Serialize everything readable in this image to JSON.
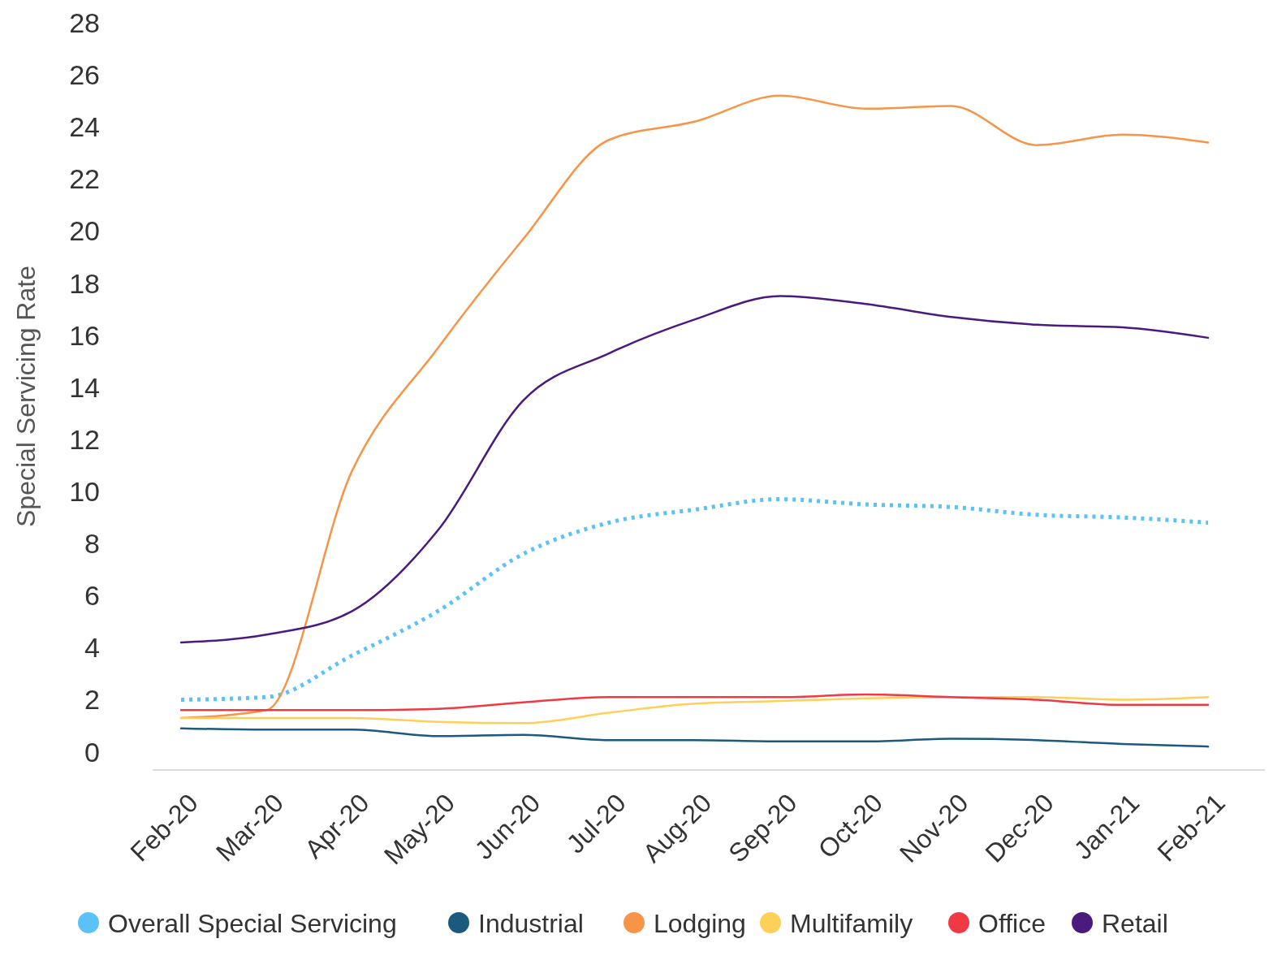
{
  "chart_data": {
    "type": "line",
    "ylabel": "Special Servicing Rate",
    "categories": [
      "Feb-20",
      "Mar-20",
      "Apr-20",
      "May-20",
      "Jun-20",
      "Jul-20",
      "Aug-20",
      "Sep-20",
      "Oct-20",
      "Nov-20",
      "Dec-20",
      "Jan-21",
      "Feb-21"
    ],
    "ylim": [
      -0.7,
      28
    ],
    "yticks": [
      0,
      2,
      4,
      6,
      8,
      10,
      12,
      14,
      16,
      18,
      20,
      22,
      24,
      26,
      28
    ],
    "grid": false,
    "legend": "bottom",
    "marker": "none",
    "series": [
      {
        "name": "Overall Special Servicing",
        "color": "#5bc2f7",
        "line_style": "dotted",
        "values": [
          2.0,
          2.1,
          3.7,
          5.4,
          7.6,
          8.8,
          9.3,
          9.7,
          9.5,
          9.4,
          9.1,
          9.0,
          8.8
        ]
      },
      {
        "name": "Industrial",
        "color": "#1b5a7e",
        "line_style": "solid",
        "values": [
          0.9,
          0.85,
          0.85,
          0.6,
          0.65,
          0.45,
          0.45,
          0.4,
          0.4,
          0.5,
          0.45,
          0.3,
          0.2
        ]
      },
      {
        "name": "Lodging",
        "color": "#f79448",
        "line_style": "solid",
        "values": [
          1.3,
          1.6,
          10.8,
          15.5,
          19.7,
          23.5,
          24.2,
          25.2,
          24.7,
          24.8,
          23.3,
          23.7,
          23.4
        ]
      },
      {
        "name": "Multifamily",
        "color": "#fdd05a",
        "line_style": "solid",
        "values": [
          1.3,
          1.3,
          1.3,
          1.15,
          1.1,
          1.5,
          1.85,
          1.95,
          2.05,
          2.1,
          2.1,
          2.0,
          2.1
        ]
      },
      {
        "name": "Office",
        "color": "#ef3a45",
        "line_style": "solid",
        "values": [
          1.6,
          1.6,
          1.6,
          1.65,
          1.9,
          2.1,
          2.1,
          2.1,
          2.2,
          2.1,
          2.0,
          1.8,
          1.8
        ]
      },
      {
        "name": "Retail",
        "color": "#4b1a7e",
        "line_style": "solid",
        "values": [
          4.2,
          4.5,
          5.4,
          8.5,
          13.5,
          15.3,
          16.6,
          17.5,
          17.2,
          16.7,
          16.4,
          16.3,
          15.9
        ]
      }
    ]
  }
}
